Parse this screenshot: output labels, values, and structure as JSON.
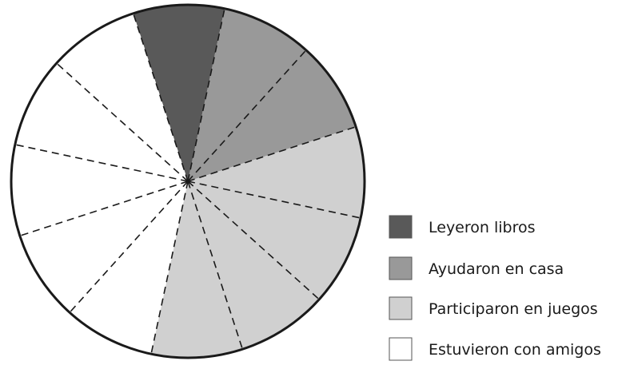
{
  "chart_data": {
    "type": "pie",
    "total_divisions": 12,
    "start_angle_deg": 252,
    "direction": "clockwise",
    "slices": [
      {
        "label": "Leyeron libros",
        "value": 1,
        "color": "#595959"
      },
      {
        "label": "Ayudaron en casa",
        "value": 2,
        "color": "#999999"
      },
      {
        "label": "Participaron en juegos",
        "value": 4,
        "color": "#d0d0d0"
      },
      {
        "label": "Estuvieron con amigos",
        "value": 5,
        "color": "#ffffff"
      }
    ],
    "legend": {
      "position": "bottom-right",
      "entries": [
        {
          "label": "Leyeron libros",
          "color": "#595959"
        },
        {
          "label": "Ayudaron en casa",
          "color": "#999999"
        },
        {
          "label": "Participaron en juegos",
          "color": "#d0d0d0"
        },
        {
          "label": "Estuvieron con amigos",
          "color": "#ffffff"
        }
      ]
    },
    "dashed_division_lines": true
  }
}
